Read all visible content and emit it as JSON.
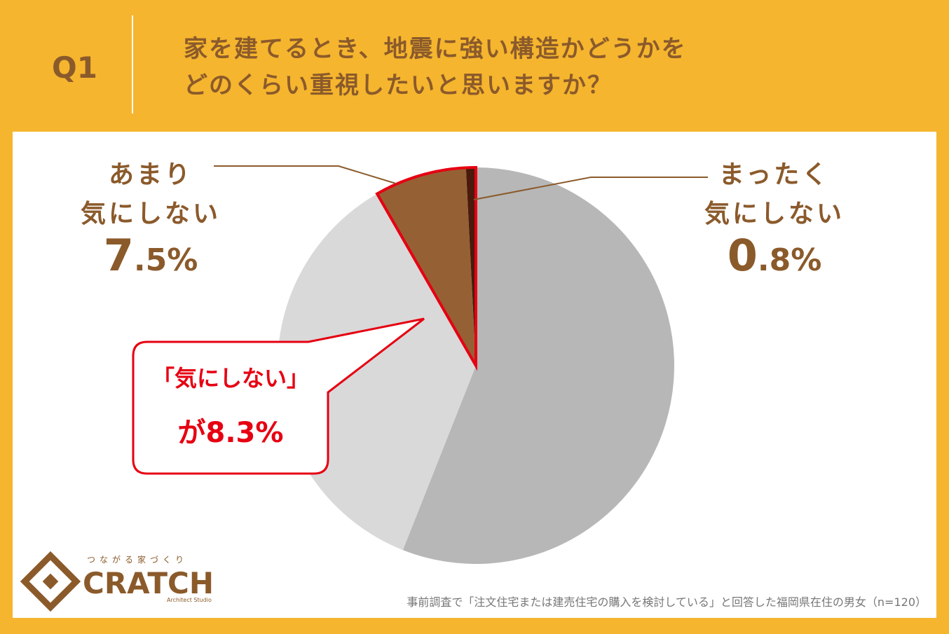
{
  "header": {
    "number": "Q1",
    "question_lines": [
      "家を建てるとき、地震に強い構造かどうかを",
      "どのくらい重視したいと思いますか？"
    ]
  },
  "chart_data": {
    "type": "pie",
    "categories": [
      null,
      null,
      "あまり\n気にしない",
      "まったく\n気にしない"
    ],
    "values": [
      56.0,
      35.7,
      7.5,
      0.8
    ],
    "value_labels": [
      null,
      null,
      "7.5%",
      "0.8%"
    ],
    "colors": [
      "#b7b7b7",
      "#d9d9d9",
      "#956134",
      "#4a1a0c"
    ],
    "callout": [
      "「気にしない」",
      "が8.3%"
    ]
  },
  "footer": {
    "note": "事前調査で「注文住宅または建売住宅の購入を検討している」と回答した福岡県在住の男女（n=120）",
    "logo": {
      "tagline": "つながる家づくり",
      "name": "CRATCH",
      "sub": "Architect Studio"
    }
  }
}
